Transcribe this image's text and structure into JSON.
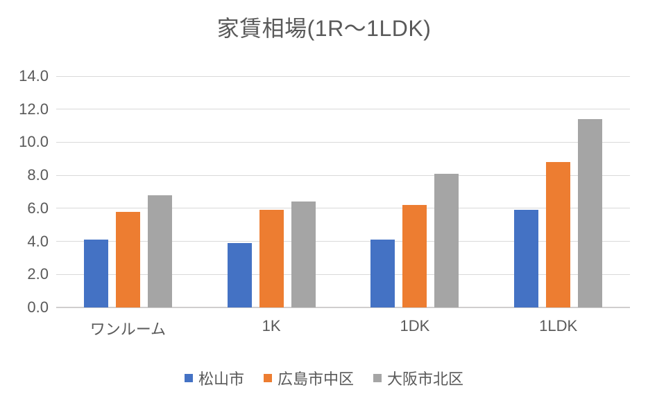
{
  "title": "家賃相場(1R〜1LDK)",
  "chart_data": {
    "type": "bar",
    "title": "家賃相場(1R〜1LDK)",
    "categories": [
      "ワンルーム",
      "1K",
      "1DK",
      "1LDK"
    ],
    "series": [
      {
        "name": "松山市",
        "color": "#4472C4",
        "values": [
          4.1,
          3.9,
          4.1,
          5.9
        ]
      },
      {
        "name": "広島市中区",
        "color": "#ED7D31",
        "values": [
          5.8,
          5.9,
          6.2,
          8.8
        ]
      },
      {
        "name": "大阪市北区",
        "color": "#A5A5A5",
        "values": [
          6.8,
          6.4,
          8.1,
          11.4
        ]
      }
    ],
    "xlabel": "",
    "ylabel": "",
    "ylim": [
      0,
      14
    ],
    "ytick_step": 2,
    "ytick_labels": [
      "0.0",
      "2.0",
      "4.0",
      "6.0",
      "8.0",
      "10.0",
      "12.0",
      "14.0"
    ],
    "grid": true,
    "legend_position": "bottom"
  },
  "colors": {
    "background": "#FFFFFF",
    "text": "#595959",
    "gridline": "#D9D9D9",
    "axis_line": "#D0CECE"
  }
}
